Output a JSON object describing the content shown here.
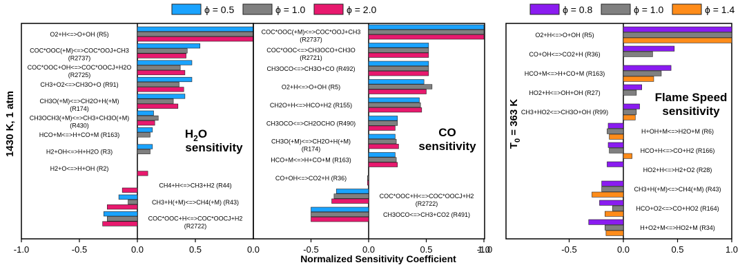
{
  "chart_data": [
    {
      "type": "bar",
      "orientation": "horizontal",
      "panel": "H2O sensitivity",
      "annotation": [
        "H",
        "2",
        "O",
        "sensitivity"
      ],
      "xlim": [
        -1.0,
        1.0
      ],
      "xticks": [
        "-1.0",
        "-0.5",
        "0.0",
        "0.5"
      ],
      "series": [
        {
          "name": "ϕ = 0.5",
          "color": "#1aa3ff"
        },
        {
          "name": "ϕ = 1.0",
          "color": "#808080"
        },
        {
          "name": "ϕ = 2.0",
          "color": "#e8196e"
        }
      ],
      "reactions": [
        {
          "label": [
            "O2+H<=>O+OH (R5)"
          ],
          "side": "L",
          "v": [
            1.0,
            1.0,
            1.0
          ]
        },
        {
          "label": [
            "COC*OOC(+M)<=>COC*OOJ+CH3",
            "(R2737)"
          ],
          "side": "L",
          "v": [
            0.54,
            0.43,
            0.42
          ]
        },
        {
          "label": [
            "COC*OOC+OH<=>COC*OOCJ+H2O",
            "(R2725)"
          ],
          "side": "L",
          "v": [
            0.47,
            0.37,
            0.41
          ]
        },
        {
          "label": [
            "CH3+O2<=>CH3O+O (R91)"
          ],
          "side": "L",
          "v": [
            0.47,
            0.36,
            0.4
          ]
        },
        {
          "label": [
            "CH3O(+M)<=>CH2O+H(+M)",
            "(R174)"
          ],
          "side": "L",
          "v": [
            0.41,
            0.31,
            0.35
          ]
        },
        {
          "label": [
            "CH3OCH3(+M)<=>CH3+CH3O(+M)",
            "(R430)"
          ],
          "side": "L",
          "v": [
            0.14,
            0.18,
            0.15
          ]
        },
        {
          "label": [
            "HCO+M<=>H+CO+M (R163)"
          ],
          "side": "L",
          "v": [
            0.13,
            0.11,
            0.0
          ]
        },
        {
          "label": [
            "H2+OH<=>H+H2O (R3)"
          ],
          "side": "L",
          "v": [
            0.13,
            0.11,
            0.0
          ]
        },
        {
          "label": [
            "H2+O<=>H+OH (R2)"
          ],
          "side": "L",
          "v": [
            0.0,
            0.0,
            0.09
          ]
        },
        {
          "label": [
            "CH4+H<=>CH3+H2 (R44)"
          ],
          "side": "R",
          "v": [
            0.0,
            0.0,
            -0.13
          ]
        },
        {
          "label": [
            "CH3+H(+M)<=>CH4(+M) (R43)"
          ],
          "side": "R",
          "v": [
            -0.16,
            -0.08,
            -0.26
          ]
        },
        {
          "label": [
            "COC*OOC+H<=>COC*OOCJ+H2",
            "(R2722)"
          ],
          "side": "R",
          "v": [
            -0.29,
            -0.26,
            -0.3
          ]
        }
      ]
    },
    {
      "type": "bar",
      "orientation": "horizontal",
      "panel": "CO sensitivity",
      "annotation": [
        "CO",
        "sensitivity"
      ],
      "xlim": [
        -1.0,
        1.0
      ],
      "xticks": [
        "-0.5",
        "0.0",
        "0.5",
        "1.0"
      ],
      "series": [
        {
          "name": "ϕ = 0.5",
          "color": "#1aa3ff"
        },
        {
          "name": "ϕ = 1.0",
          "color": "#808080"
        },
        {
          "name": "ϕ = 2.0",
          "color": "#e8196e"
        }
      ],
      "reactions": [
        {
          "label": [
            "COC*OOC(+M)<=>COC*OOJ+CH3",
            "(R2737)"
          ],
          "side": "L",
          "v": [
            1.0,
            1.0,
            1.0
          ]
        },
        {
          "label": [
            "COC*OOC<=>CH3OCO+CH3O",
            "(R2721)"
          ],
          "side": "L",
          "v": [
            0.52,
            0.52,
            0.52
          ]
        },
        {
          "label": [
            "CH3OCO<=>CH3O+CO (R492)"
          ],
          "side": "L",
          "v": [
            0.52,
            0.52,
            0.52
          ]
        },
        {
          "label": [
            "O2+H<=>O+OH (R5)"
          ],
          "side": "L",
          "v": [
            0.48,
            0.55,
            0.5
          ]
        },
        {
          "label": [
            "CH2O+H<=>HCO+H2 (R155)"
          ],
          "side": "L",
          "v": [
            0.44,
            0.45,
            0.46
          ]
        },
        {
          "label": [
            "CH3OCO<=>CH2OCHO (R490)"
          ],
          "side": "L",
          "v": [
            0.25,
            0.25,
            0.23
          ]
        },
        {
          "label": [
            "CH3O(+M)<=>CH2O+H(+M)",
            "(R174)"
          ],
          "side": "L",
          "v": [
            0.23,
            0.24,
            0.26
          ]
        },
        {
          "label": [
            "HCO+M<=>H+CO+M (R163)"
          ],
          "side": "L",
          "v": [
            0.23,
            0.24,
            0.25
          ]
        },
        {
          "label": [
            "CO+OH<=>CO2+H (R36)"
          ],
          "side": "L",
          "v": [
            0.0,
            -0.01,
            -0.01
          ]
        },
        {
          "label": [
            "COC*OOC+H<=>COC*OOCJ+H2",
            "(R2722)"
          ],
          "side": "R",
          "v": [
            -0.28,
            -0.3,
            -0.32
          ]
        },
        {
          "label": [
            "CH3OCO<=>CH3+CO2 (R491)"
          ],
          "side": "R",
          "v": [
            -0.5,
            -0.5,
            -0.5
          ]
        }
      ]
    },
    {
      "type": "bar",
      "orientation": "horizontal",
      "panel": "Flame Speed sensitivity",
      "annotation": [
        "Flame Speed",
        "sensitivity"
      ],
      "xlim": [
        -1.0,
        1.0
      ],
      "xticks": [
        "-0.5",
        "0.0",
        "0.5",
        "1.0"
      ],
      "series": [
        {
          "name": "ϕ = 0.8",
          "color": "#8a1cf0"
        },
        {
          "name": "ϕ = 1.0",
          "color": "#808080"
        },
        {
          "name": "ϕ = 1.4",
          "color": "#ff8c1a"
        }
      ],
      "reactions": [
        {
          "label": [
            "O2+H<=>O+OH (R5)"
          ],
          "side": "L",
          "v": [
            1.0,
            1.0,
            1.0
          ]
        },
        {
          "label": [
            "CO+OH<=>CO2+H (R36)"
          ],
          "side": "L",
          "v": [
            0.47,
            0.27,
            0.0
          ]
        },
        {
          "label": [
            "HCO+M<=>H+CO+M (R163)"
          ],
          "side": "L",
          "v": [
            0.44,
            0.35,
            0.28
          ]
        },
        {
          "label": [
            "HO2+H<=>OH+OH (R27)"
          ],
          "side": "L",
          "v": [
            0.17,
            0.12,
            0.0
          ]
        },
        {
          "label": [
            "CH3+HO2<=>CH3O+OH (R99)"
          ],
          "side": "L",
          "v": [
            0.15,
            0.12,
            0.11
          ]
        },
        {
          "label": [
            "H+OH+M<=>H2O+M (R6)"
          ],
          "side": "R",
          "v": [
            -0.14,
            -0.15,
            -0.13
          ]
        },
        {
          "label": [
            "HCO+H<=>CO+H2 (R166)"
          ],
          "side": "R",
          "v": [
            -0.14,
            -0.13,
            0.08
          ]
        },
        {
          "label": [
            "HO2+H<=>H2+O2 (R28)"
          ],
          "side": "R",
          "v": [
            -0.15,
            0.0,
            0.0
          ]
        },
        {
          "label": [
            "CH3+H(+M)<=>CH4(+M) (R43)"
          ],
          "side": "R",
          "v": [
            -0.2,
            -0.2,
            -0.29
          ]
        },
        {
          "label": [
            "HCO+O2<=>CO+HO2 (R164)"
          ],
          "side": "R",
          "v": [
            -0.22,
            -0.1,
            -0.17
          ]
        },
        {
          "label": [
            "H+O2+M<=>HO2+M (R34)"
          ],
          "side": "R",
          "v": [
            -0.32,
            -0.17,
            -0.16
          ]
        }
      ]
    }
  ],
  "figure": {
    "y_label_left": "1430 K, 1 atm",
    "y_label_right": "T",
    "y_label_right_sub": "0",
    "y_label_right_rest": " = 363 K",
    "x_label": "Normalized Sensitivity Coefficient"
  }
}
